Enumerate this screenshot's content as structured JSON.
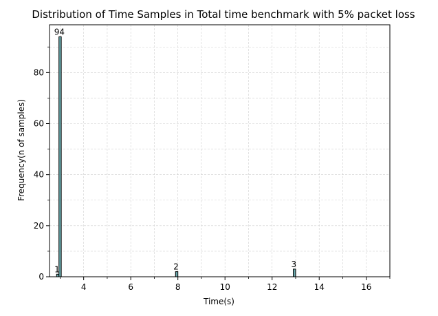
{
  "chart_data": {
    "type": "bar",
    "title": "Distribution of Time Samples in Total time benchmark with 5% packet loss",
    "xlabel": "Time(s)",
    "ylabel": "Frequency(n of samples)",
    "xlim": [
      2.55,
      17.0
    ],
    "ylim": [
      0,
      98.7
    ],
    "x_ticks": [
      4,
      6,
      8,
      10,
      12,
      14,
      16
    ],
    "y_ticks": [
      0,
      20,
      40,
      60,
      80
    ],
    "x_minor_ticks": [
      3,
      5,
      7,
      9,
      11,
      13,
      15,
      17
    ],
    "bin_width": 0.1,
    "grid": true,
    "bar_color": "#6aa9ad",
    "bar_edge_color": "#000000",
    "bars": [
      {
        "x": 2.9,
        "value": 1,
        "label": "1"
      },
      {
        "x": 3.0,
        "value": 94,
        "label": "94"
      },
      {
        "x": 7.95,
        "value": 2,
        "label": "2"
      },
      {
        "x": 12.95,
        "value": 3,
        "label": "3"
      }
    ]
  }
}
